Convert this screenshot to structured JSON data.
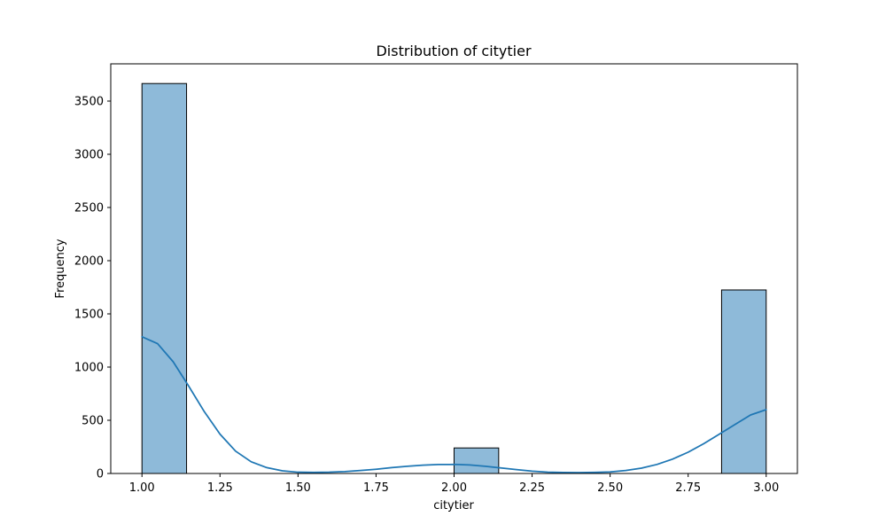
{
  "chart_data": {
    "type": "bar",
    "title": "Distribution of citytier",
    "xlabel": "citytier",
    "ylabel": "Frequency",
    "xlim": [
      0.9,
      3.1
    ],
    "ylim": [
      0,
      3850
    ],
    "xticks": [
      1.0,
      1.25,
      1.5,
      1.75,
      2.0,
      2.25,
      2.5,
      2.75,
      3.0
    ],
    "xtick_labels": [
      "1.00",
      "1.25",
      "1.50",
      "1.75",
      "2.00",
      "2.25",
      "2.50",
      "2.75",
      "3.00"
    ],
    "yticks": [
      0,
      500,
      1000,
      1500,
      2000,
      2500,
      3000,
      3500
    ],
    "ytick_labels": [
      "0",
      "500",
      "1000",
      "1500",
      "2000",
      "2500",
      "3000",
      "3500"
    ],
    "bins": [
      {
        "x0": 1.0,
        "x1": 1.1429,
        "count": 3665
      },
      {
        "x0": 2.0,
        "x1": 2.1429,
        "count": 240
      },
      {
        "x0": 2.8571,
        "x1": 3.0,
        "count": 1725
      }
    ],
    "kde": {
      "x": [
        1.0,
        1.05,
        1.1,
        1.15,
        1.2,
        1.25,
        1.3,
        1.35,
        1.4,
        1.45,
        1.5,
        1.55,
        1.6,
        1.65,
        1.7,
        1.75,
        1.8,
        1.85,
        1.9,
        1.95,
        2.0,
        2.05,
        2.1,
        2.15,
        2.2,
        2.25,
        2.3,
        2.35,
        2.4,
        2.45,
        2.5,
        2.55,
        2.6,
        2.65,
        2.7,
        2.75,
        2.8,
        2.85,
        2.9,
        2.95,
        3.0
      ],
      "y": [
        1285,
        1220,
        1050,
        820,
        580,
        370,
        210,
        110,
        55,
        25,
        12,
        10,
        12,
        18,
        28,
        40,
        55,
        68,
        78,
        84,
        85,
        80,
        68,
        52,
        36,
        22,
        13,
        9,
        8,
        10,
        15,
        28,
        50,
        85,
        135,
        200,
        280,
        370,
        460,
        550,
        600
      ]
    },
    "colors": {
      "bar_fill": "#8ebad9",
      "bar_edge": "#000000",
      "kde_line": "#1f77b4"
    },
    "grid": false,
    "legend": "none"
  }
}
